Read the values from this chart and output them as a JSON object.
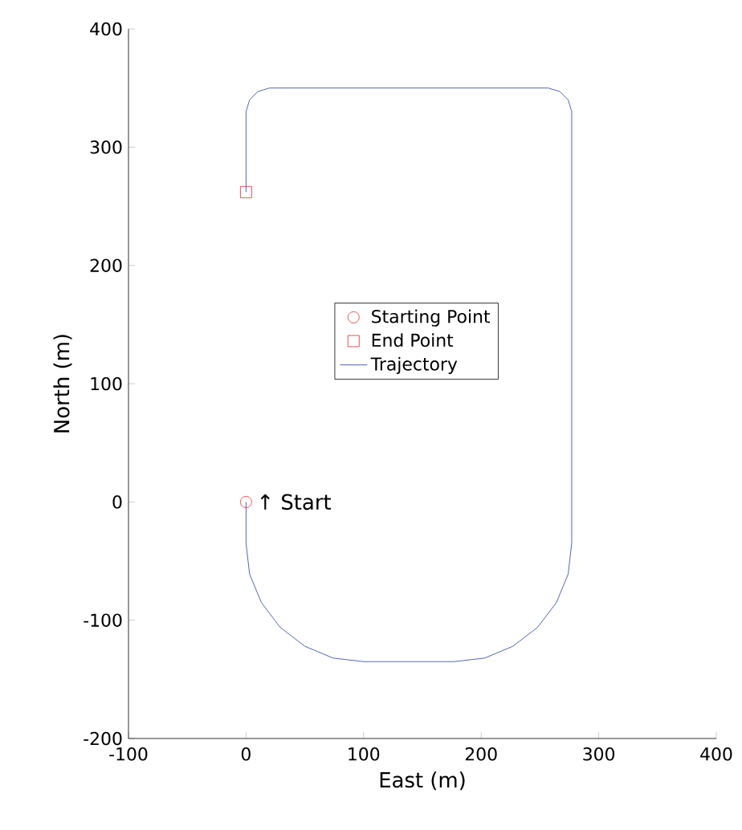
{
  "chart_data": {
    "type": "line",
    "xlabel": "East (m)",
    "ylabel": "North (m)",
    "xlim": [
      -100,
      400
    ],
    "xticks": [
      -100,
      0,
      100,
      200,
      300,
      400
    ],
    "ylim": [
      -200,
      400
    ],
    "yticks": [
      -200,
      -100,
      0,
      100,
      200,
      300,
      400
    ],
    "grid": false,
    "legend": "center",
    "series": [
      {
        "name": "Starting Point",
        "type": "scatter",
        "marker": "circle",
        "color": "#e8242a",
        "x": [
          0
        ],
        "values": [
          0
        ]
      },
      {
        "name": "End Point",
        "type": "scatter",
        "marker": "square",
        "color": "#e8242a",
        "x": [
          0
        ],
        "values": [
          262
        ]
      },
      {
        "name": "Trajectory",
        "marker": "none",
        "color": "#2b3fa8",
        "x": [
          0,
          0,
          3,
          13,
          29,
          50,
          74,
          100,
          177,
          203,
          227,
          248,
          264,
          274,
          277,
          277,
          274,
          267,
          257,
          20,
          10,
          3,
          0,
          0
        ],
        "values": [
          0,
          -35,
          -61,
          -85,
          -106,
          -122,
          -132,
          -135,
          -135,
          -132,
          -122,
          -106,
          -85,
          -61,
          -35,
          330,
          340,
          347,
          350,
          350,
          347,
          340,
          330,
          262
        ]
      }
    ],
    "annotations": [
      {
        "text": "↑ Start",
        "x": 0,
        "y": 0
      }
    ]
  }
}
